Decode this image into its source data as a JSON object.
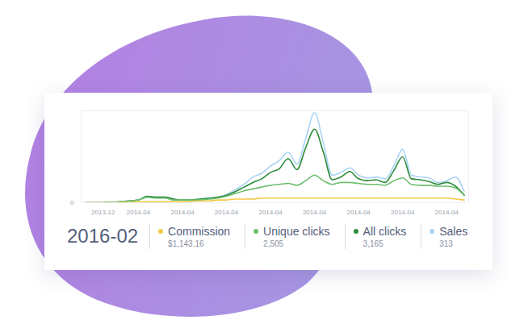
{
  "chart_data": {
    "type": "line",
    "title": "2016-02",
    "categories": [
      null,
      null,
      "2013-12",
      null,
      null,
      null,
      "2014-04",
      null,
      null,
      null,
      null,
      "2014-04",
      null,
      null,
      null,
      null,
      "2014-04",
      null,
      null,
      null,
      null,
      "2014-04",
      null,
      null,
      null,
      null,
      "2014-04",
      null,
      null,
      null,
      null,
      "2014-04",
      null,
      null,
      null,
      null,
      "2014-04",
      null,
      null,
      null,
      null,
      "2014-04",
      null,
      null
    ],
    "series": [
      {
        "name": "Sales",
        "color": "#a9d4f5",
        "total": {
          "value": 313,
          "label": "313"
        },
        "values": [
          0,
          0,
          0,
          0.5,
          1,
          2,
          3,
          7,
          6,
          6,
          4,
          3,
          3,
          4,
          5,
          6,
          9,
          14,
          20,
          28,
          32,
          40,
          46,
          55,
          42,
          70,
          98,
          65,
          30,
          33,
          38,
          30,
          27,
          28,
          26,
          40,
          58,
          30,
          28,
          27,
          22,
          24,
          28,
          12
        ]
      },
      {
        "name": "All clicks",
        "color": "#2e8b3a",
        "total": {
          "value": 3165,
          "label": "3,165"
        },
        "values": [
          0,
          0,
          0,
          0.5,
          1,
          2,
          3,
          7,
          6,
          6,
          4,
          3,
          3,
          4,
          5,
          6,
          8,
          12,
          17,
          22,
          26,
          33,
          37,
          48,
          36,
          60,
          80,
          55,
          25,
          28,
          34,
          26,
          24,
          25,
          22,
          35,
          50,
          26,
          25,
          23,
          20,
          22,
          18,
          8
        ]
      },
      {
        "name": "Unique clicks",
        "color": "#6cbf6f",
        "total": {
          "value": 2505,
          "label": "2,505"
        },
        "values": [
          0,
          0,
          0,
          0.5,
          1,
          2,
          3,
          6,
          5,
          5,
          3,
          3,
          3,
          3,
          4,
          5,
          7,
          10,
          13,
          15,
          17,
          19,
          20,
          21,
          19,
          24,
          30,
          24,
          20,
          22,
          22,
          21,
          20,
          20,
          19,
          24,
          27,
          20,
          19,
          19,
          18,
          18,
          16,
          8
        ]
      },
      {
        "name": "Commission",
        "color": "#f2c744",
        "total": {
          "value": 1143.16,
          "label": "$1,143.16"
        },
        "values": [
          0,
          0,
          0,
          0,
          0.5,
          0.5,
          1,
          1,
          1,
          1,
          1,
          1,
          1.5,
          2,
          2,
          3,
          3,
          4,
          4,
          4,
          5,
          5,
          5,
          5,
          5,
          5,
          5,
          5,
          5,
          5,
          5,
          5,
          5,
          5,
          5,
          5,
          5,
          5,
          5,
          5,
          5,
          5,
          4,
          3
        ]
      }
    ],
    "legend_order": [
      "Commission",
      "Unique clicks",
      "All clicks",
      "Sales"
    ],
    "ylim": [
      0,
      100
    ],
    "yticks": [
      0
    ],
    "grid": true,
    "legend": "bottom"
  }
}
